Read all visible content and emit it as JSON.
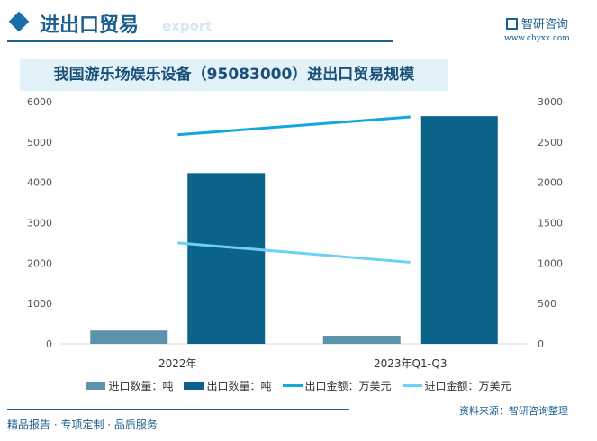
{
  "header": {
    "title": "进出口贸易",
    "watermark_en": "export",
    "logo_text": "智研咨询",
    "url": "www.chyxx.com"
  },
  "chart_data": {
    "type": "bar",
    "title": "我国游乐场娱乐设备（95083000）进出口贸易规模",
    "categories": [
      "2022年",
      "2023年Q1-Q3"
    ],
    "series": [
      {
        "name": "进口数量：吨",
        "kind": "bar",
        "axis": "left",
        "color": "#5b93ad",
        "values": [
          330,
          200
        ]
      },
      {
        "name": "出口数量：吨",
        "kind": "bar",
        "axis": "left",
        "color": "#0b6389",
        "values": [
          4230,
          5640
        ]
      },
      {
        "name": "出口金额：万美元",
        "kind": "line",
        "axis": "right",
        "color": "#0fa7de",
        "values": [
          2590,
          2810
        ]
      },
      {
        "name": "进口金额：万美元",
        "kind": "line",
        "axis": "right",
        "color": "#6dd0f7",
        "values": [
          1250,
          1010
        ]
      }
    ],
    "left_axis": {
      "ylim": [
        0,
        6000
      ],
      "ticks": [
        "0",
        "1000",
        "2000",
        "3000",
        "4000",
        "5000",
        "6000"
      ]
    },
    "right_axis": {
      "ylim": [
        0,
        3000
      ],
      "ticks": [
        "0",
        "500",
        "1000",
        "1500",
        "2000",
        "2500",
        "3000"
      ]
    },
    "legend": "bottom",
    "grid": false
  },
  "footer": {
    "source": "资料来源：智研咨询整理",
    "tagline": "精品报告 · 专项定制 · 品质服务"
  }
}
